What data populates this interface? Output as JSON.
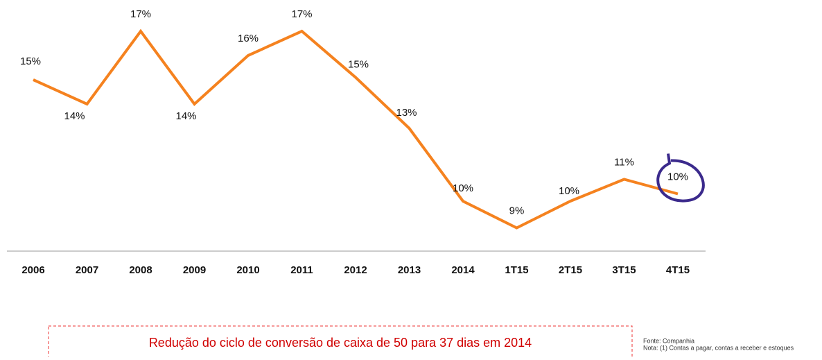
{
  "chart_data": {
    "type": "line",
    "categories": [
      "2006",
      "2007",
      "2008",
      "2009",
      "2010",
      "2011",
      "2012",
      "2013",
      "2014",
      "1T15",
      "2T15",
      "3T15",
      "4T15"
    ],
    "values": [
      15.0,
      14.0,
      17.0,
      14.0,
      16.0,
      17.0,
      15.1,
      13.0,
      10.0,
      8.9,
      10.0,
      10.9,
      10.3
    ],
    "value_labels": [
      "15%",
      "14%",
      "17%",
      "14%",
      "16%",
      "17%",
      "15%",
      "13%",
      "10%",
      "9%",
      "10%",
      "11%",
      "10%"
    ],
    "color": "#f5821f",
    "ylim": [
      8,
      18
    ],
    "annotation": "Redução do ciclo de conversão de caixa de 50 para 37 dias em 2014",
    "source": "Fonte: Companhia",
    "note": "Nota: (1) Contas a pagar, contas a receber e estoques"
  }
}
